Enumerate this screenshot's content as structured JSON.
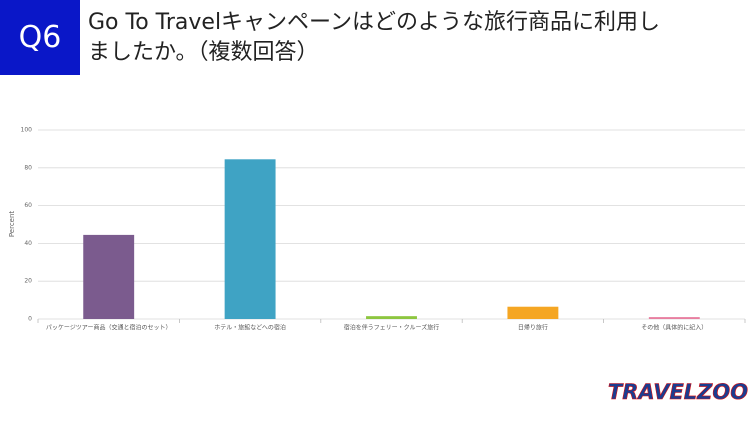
{
  "slide": {
    "badge": "Q6",
    "title_lines": [
      "Go To Travelキャンペーンはどのような旅行商品に利用し",
      "ましたか。（複数回答）"
    ],
    "logo": "TRAVELZOO"
  },
  "chart_data": {
    "type": "bar",
    "y_label": "Percent",
    "categories": [
      "パッケージツアー商品（交通と宿泊のセット）",
      "ホテル・旅館などへの宿泊",
      "宿泊を伴うフェリー・クルーズ旅行",
      "日帰り旅行",
      "その他（具体的に記入）"
    ],
    "values": [
      44.5,
      84.5,
      1.5,
      6.5,
      1
    ],
    "colors": [
      "#7b5b8e",
      "#3fa3c4",
      "#8dc63f",
      "#f5a623",
      "#e87fa0"
    ],
    "ylim": [
      0,
      100
    ],
    "yticks": [
      0,
      20,
      40,
      60,
      80,
      100
    ],
    "grid": true
  }
}
